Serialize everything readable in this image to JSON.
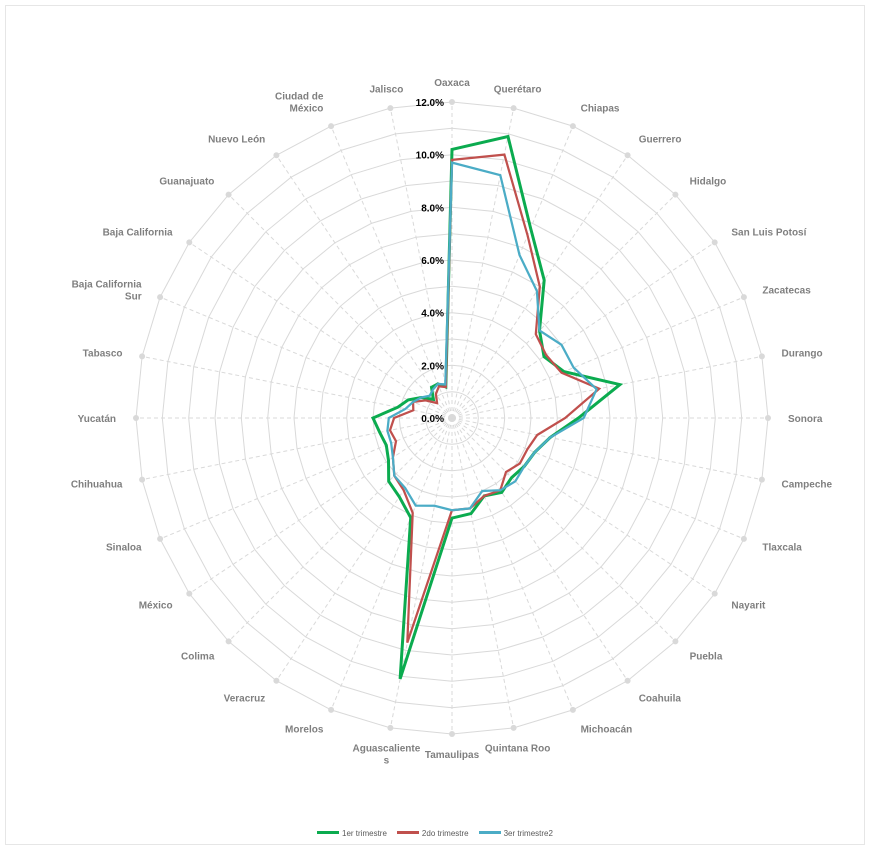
{
  "chart_data": {
    "type": "radar",
    "categories": [
      "Oaxaca",
      "Querétaro",
      "Chiapas",
      "Guerrero",
      "Hidalgo",
      "San Luis Potosí",
      "Zacatecas",
      "Durango",
      "Sonora",
      "Campeche",
      "Tlaxcala",
      "Nayarit",
      "Puebla",
      "Coahuila",
      "Michoacán",
      "Quintana Roo",
      "Tamaulipas",
      "Aguascalientes",
      "Morelos",
      "Veracruz",
      "Colima",
      "México",
      "Sinaloa",
      "Chihuahua",
      "Yucatán",
      "Tabasco",
      "Baja California Sur",
      "Baja California",
      "Guanajuato",
      "Nuevo León",
      "Ciudad de México",
      "Jalisco"
    ],
    "category_labels": [
      "Oaxaca",
      "Querétaro",
      "Chiapas",
      "Guerrero",
      "Hidalgo",
      "San Luis Potosí",
      "Zacatecas",
      "Durango",
      "Sonora",
      "Campeche",
      "Tlaxcala",
      "Nayarit",
      "Puebla",
      "Coahuila",
      "Michoacán",
      "Quintana Roo",
      "Tamaulipas",
      "Aguascaliente\ns",
      "Morelos",
      "Veracruz",
      "Colima",
      "México",
      "Sinaloa",
      "Chihuahua",
      "Yucatán",
      "Tabasco",
      "Baja California\nSur",
      "Baja California",
      "Guanajuato",
      "Nuevo León",
      "Ciudad de\nMéxico",
      "Jalisco"
    ],
    "rlim": [
      0,
      12
    ],
    "ticks": [
      0,
      2,
      4,
      6,
      8,
      10,
      12
    ],
    "tick_labels": [
      "0.0%",
      "2.0%",
      "4.0%",
      "6.0%",
      "8.0%",
      "10.0%",
      "12.0%"
    ],
    "series": [
      {
        "name": "1er trimestre",
        "color": "#0bab4f",
        "values": [
          10.2,
          10.9,
          7.8,
          6.3,
          4.7,
          4.2,
          4.6,
          6.5,
          4.8,
          3.8,
          3.4,
          3.3,
          3.2,
          3.4,
          3.2,
          3.7,
          3.8,
          10.1,
          4.1,
          3.6,
          3.4,
          2.9,
          2.7,
          2.8,
          3.0,
          2.1,
          1.8,
          1.4,
          1.0,
          1.4,
          1.4,
          1.2
        ]
      },
      {
        "name": "2do trimestre",
        "color": "#c0504d",
        "values": [
          9.8,
          10.2,
          7.5,
          6.0,
          4.5,
          4.3,
          4.5,
          5.7,
          4.3,
          3.3,
          3.1,
          3.1,
          2.9,
          3.3,
          3.2,
          3.5,
          3.5,
          8.7,
          3.9,
          3.3,
          3.1,
          2.7,
          2.3,
          2.4,
          2.2,
          1.5,
          1.6,
          1.2,
          0.8,
          1.1,
          1.3,
          1.2
        ]
      },
      {
        "name": "3er trimestre2",
        "color": "#4bacc6",
        "values": [
          9.7,
          9.4,
          6.7,
          5.8,
          4.7,
          5.0,
          5.0,
          5.6,
          5.0,
          3.8,
          3.4,
          3.3,
          3.4,
          3.3,
          3.0,
          3.5,
          3.5,
          3.4,
          3.6,
          3.2,
          3.1,
          2.7,
          2.5,
          2.5,
          2.4,
          1.8,
          1.6,
          1.4,
          1.2,
          1.3,
          1.4,
          1.3
        ]
      }
    ],
    "grid": true,
    "legend_position": "bottom"
  }
}
